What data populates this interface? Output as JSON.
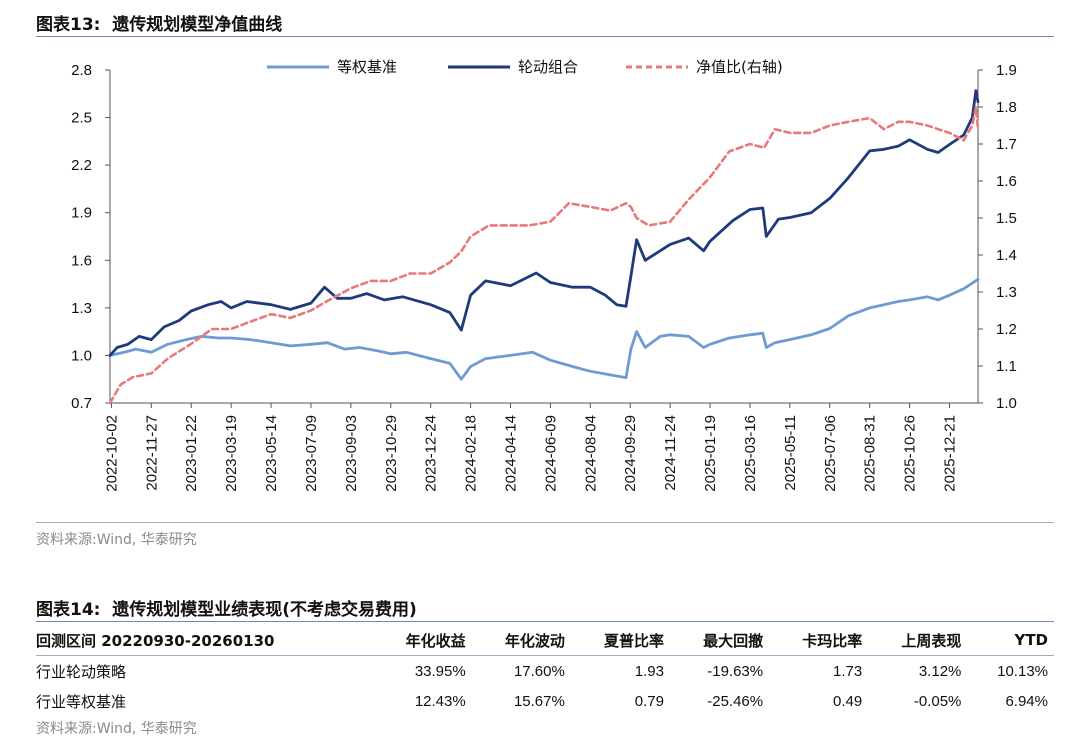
{
  "figure13": {
    "title": "图表13:  遗传规划模型净值曲线",
    "source": "资料来源:Wind, 华泰研究"
  },
  "chart_data": {
    "type": "line",
    "left_axis": {
      "ticks": [
        "0.7",
        "1.0",
        "1.3",
        "1.6",
        "1.9",
        "2.2",
        "2.5",
        "2.8"
      ],
      "range": [
        0.7,
        2.8
      ]
    },
    "right_axis": {
      "ticks": [
        "1.0",
        "1.1",
        "1.2",
        "1.3",
        "1.4",
        "1.5",
        "1.6",
        "1.7",
        "1.8",
        "1.9"
      ],
      "range": [
        1.0,
        1.9
      ]
    },
    "x_tick_labels": [
      "2022-10-02",
      "2022-11-27",
      "2023-01-22",
      "2023-03-19",
      "2023-05-14",
      "2023-07-09",
      "2023-09-03",
      "2023-10-29",
      "2023-12-24",
      "2024-02-18",
      "2024-04-14",
      "2024-06-09",
      "2024-08-04",
      "2024-09-29",
      "2024-11-24",
      "2025-01-19",
      "2025-03-16",
      "2025-05-11",
      "2025-07-06",
      "2025-08-31",
      "2025-10-26",
      "2025-12-21"
    ],
    "x_range": [
      "2022-09-30",
      "2026-01-30"
    ],
    "legend_position": "top",
    "series": [
      {
        "name": "等权基准",
        "axis": "left",
        "color": "#6f9bd3",
        "style": "solid",
        "points": [
          [
            "2022-09-30",
            1.0
          ],
          [
            "2022-10-20",
            1.02
          ],
          [
            "2022-11-05",
            1.04
          ],
          [
            "2022-11-27",
            1.02
          ],
          [
            "2022-12-20",
            1.07
          ],
          [
            "2023-01-15",
            1.1
          ],
          [
            "2023-02-05",
            1.12
          ],
          [
            "2023-03-01",
            1.11
          ],
          [
            "2023-03-19",
            1.11
          ],
          [
            "2023-04-15",
            1.1
          ],
          [
            "2023-05-14",
            1.08
          ],
          [
            "2023-06-10",
            1.06
          ],
          [
            "2023-07-09",
            1.07
          ],
          [
            "2023-08-01",
            1.08
          ],
          [
            "2023-08-25",
            1.04
          ],
          [
            "2023-09-15",
            1.05
          ],
          [
            "2023-10-10",
            1.03
          ],
          [
            "2023-10-29",
            1.01
          ],
          [
            "2023-11-20",
            1.02
          ],
          [
            "2023-12-24",
            0.98
          ],
          [
            "2024-01-20",
            0.95
          ],
          [
            "2024-02-05",
            0.85
          ],
          [
            "2024-02-18",
            0.93
          ],
          [
            "2024-03-10",
            0.98
          ],
          [
            "2024-04-14",
            1.0
          ],
          [
            "2024-05-15",
            1.02
          ],
          [
            "2024-06-09",
            0.97
          ],
          [
            "2024-07-10",
            0.93
          ],
          [
            "2024-08-04",
            0.9
          ],
          [
            "2024-09-10",
            0.87
          ],
          [
            "2024-09-23",
            0.86
          ],
          [
            "2024-09-30",
            1.04
          ],
          [
            "2024-10-08",
            1.15
          ],
          [
            "2024-10-20",
            1.05
          ],
          [
            "2024-11-10",
            1.12
          ],
          [
            "2024-11-24",
            1.13
          ],
          [
            "2024-12-20",
            1.12
          ],
          [
            "2025-01-10",
            1.05
          ],
          [
            "2025-01-19",
            1.07
          ],
          [
            "2025-02-15",
            1.11
          ],
          [
            "2025-03-16",
            1.13
          ],
          [
            "2025-04-03",
            1.14
          ],
          [
            "2025-04-08",
            1.05
          ],
          [
            "2025-04-20",
            1.08
          ],
          [
            "2025-05-11",
            1.1
          ],
          [
            "2025-06-10",
            1.13
          ],
          [
            "2025-07-06",
            1.17
          ],
          [
            "2025-08-01",
            1.25
          ],
          [
            "2025-08-31",
            1.3
          ],
          [
            "2025-09-20",
            1.32
          ],
          [
            "2025-10-10",
            1.34
          ],
          [
            "2025-10-26",
            1.35
          ],
          [
            "2025-11-20",
            1.37
          ],
          [
            "2025-12-05",
            1.35
          ],
          [
            "2025-12-21",
            1.38
          ],
          [
            "2026-01-10",
            1.42
          ],
          [
            "2026-01-30",
            1.48
          ]
        ]
      },
      {
        "name": "轮动组合",
        "axis": "left",
        "color": "#1f3a7a",
        "style": "solid",
        "points": [
          [
            "2022-09-30",
            1.0
          ],
          [
            "2022-10-10",
            1.05
          ],
          [
            "2022-10-25",
            1.07
          ],
          [
            "2022-11-10",
            1.12
          ],
          [
            "2022-11-27",
            1.1
          ],
          [
            "2022-12-15",
            1.18
          ],
          [
            "2023-01-05",
            1.22
          ],
          [
            "2023-01-22",
            1.28
          ],
          [
            "2023-02-15",
            1.32
          ],
          [
            "2023-03-05",
            1.34
          ],
          [
            "2023-03-19",
            1.3
          ],
          [
            "2023-04-10",
            1.34
          ],
          [
            "2023-05-14",
            1.32
          ],
          [
            "2023-06-10",
            1.29
          ],
          [
            "2023-07-09",
            1.33
          ],
          [
            "2023-07-28",
            1.43
          ],
          [
            "2023-08-15",
            1.36
          ],
          [
            "2023-09-03",
            1.36
          ],
          [
            "2023-09-25",
            1.39
          ],
          [
            "2023-10-20",
            1.35
          ],
          [
            "2023-11-15",
            1.37
          ],
          [
            "2023-12-24",
            1.32
          ],
          [
            "2024-01-20",
            1.27
          ],
          [
            "2024-02-05",
            1.16
          ],
          [
            "2024-02-18",
            1.38
          ],
          [
            "2024-03-10",
            1.47
          ],
          [
            "2024-04-14",
            1.44
          ],
          [
            "2024-05-20",
            1.52
          ],
          [
            "2024-06-09",
            1.46
          ],
          [
            "2024-07-10",
            1.43
          ],
          [
            "2024-08-04",
            1.43
          ],
          [
            "2024-08-25",
            1.38
          ],
          [
            "2024-09-10",
            1.32
          ],
          [
            "2024-09-23",
            1.31
          ],
          [
            "2024-09-30",
            1.5
          ],
          [
            "2024-10-08",
            1.73
          ],
          [
            "2024-10-20",
            1.6
          ],
          [
            "2024-11-10",
            1.66
          ],
          [
            "2024-11-24",
            1.7
          ],
          [
            "2024-12-20",
            1.74
          ],
          [
            "2025-01-10",
            1.66
          ],
          [
            "2025-01-19",
            1.72
          ],
          [
            "2025-02-20",
            1.85
          ],
          [
            "2025-03-16",
            1.92
          ],
          [
            "2025-04-03",
            1.93
          ],
          [
            "2025-04-08",
            1.75
          ],
          [
            "2025-04-25",
            1.86
          ],
          [
            "2025-05-11",
            1.87
          ],
          [
            "2025-06-10",
            1.9
          ],
          [
            "2025-07-06",
            1.99
          ],
          [
            "2025-08-01",
            2.12
          ],
          [
            "2025-08-31",
            2.29
          ],
          [
            "2025-09-20",
            2.3
          ],
          [
            "2025-10-10",
            2.32
          ],
          [
            "2025-10-26",
            2.36
          ],
          [
            "2025-11-20",
            2.3
          ],
          [
            "2025-12-05",
            2.28
          ],
          [
            "2025-12-21",
            2.33
          ],
          [
            "2026-01-10",
            2.39
          ],
          [
            "2026-01-22",
            2.5
          ],
          [
            "2026-01-27",
            2.67
          ],
          [
            "2026-01-30",
            2.6
          ]
        ]
      },
      {
        "name": "净值比(右轴)",
        "axis": "right",
        "color": "#e8797b",
        "style": "dashed",
        "points": [
          [
            "2022-09-30",
            1.0
          ],
          [
            "2022-10-15",
            1.05
          ],
          [
            "2022-11-01",
            1.07
          ],
          [
            "2022-11-27",
            1.08
          ],
          [
            "2022-12-20",
            1.12
          ],
          [
            "2023-01-22",
            1.16
          ],
          [
            "2023-02-20",
            1.2
          ],
          [
            "2023-03-19",
            1.2
          ],
          [
            "2023-04-15",
            1.22
          ],
          [
            "2023-05-14",
            1.24
          ],
          [
            "2023-06-10",
            1.23
          ],
          [
            "2023-07-09",
            1.25
          ],
          [
            "2023-08-05",
            1.28
          ],
          [
            "2023-09-03",
            1.31
          ],
          [
            "2023-10-01",
            1.33
          ],
          [
            "2023-10-29",
            1.33
          ],
          [
            "2023-11-25",
            1.35
          ],
          [
            "2023-12-24",
            1.35
          ],
          [
            "2024-01-20",
            1.38
          ],
          [
            "2024-02-05",
            1.41
          ],
          [
            "2024-02-18",
            1.45
          ],
          [
            "2024-03-15",
            1.48
          ],
          [
            "2024-04-14",
            1.48
          ],
          [
            "2024-05-10",
            1.48
          ],
          [
            "2024-06-09",
            1.49
          ],
          [
            "2024-07-05",
            1.54
          ],
          [
            "2024-08-04",
            1.53
          ],
          [
            "2024-09-01",
            1.52
          ],
          [
            "2024-09-23",
            1.54
          ],
          [
            "2024-09-30",
            1.53
          ],
          [
            "2024-10-08",
            1.5
          ],
          [
            "2024-10-25",
            1.48
          ],
          [
            "2024-11-24",
            1.49
          ],
          [
            "2024-12-20",
            1.55
          ],
          [
            "2025-01-19",
            1.61
          ],
          [
            "2025-02-15",
            1.68
          ],
          [
            "2025-03-16",
            1.7
          ],
          [
            "2025-04-05",
            1.69
          ],
          [
            "2025-04-20",
            1.74
          ],
          [
            "2025-05-11",
            1.73
          ],
          [
            "2025-06-10",
            1.73
          ],
          [
            "2025-07-06",
            1.75
          ],
          [
            "2025-08-01",
            1.76
          ],
          [
            "2025-08-31",
            1.77
          ],
          [
            "2025-09-20",
            1.74
          ],
          [
            "2025-10-10",
            1.76
          ],
          [
            "2025-10-26",
            1.76
          ],
          [
            "2025-11-20",
            1.75
          ],
          [
            "2025-12-05",
            1.74
          ],
          [
            "2025-12-21",
            1.73
          ],
          [
            "2026-01-10",
            1.71
          ],
          [
            "2026-01-22",
            1.75
          ],
          [
            "2026-01-27",
            1.8
          ],
          [
            "2026-01-30",
            1.74
          ]
        ]
      }
    ]
  },
  "figure14": {
    "title": "图表14:  遗传规划模型业绩表现(不考虑交易费用)",
    "source": "资料来源:Wind, 华泰研究",
    "headers": [
      "回测区间 20220930-20260130",
      "年化收益",
      "年化波动",
      "夏普比率",
      "最大回撤",
      "卡玛比率",
      "上周表现",
      "YTD"
    ],
    "rows": [
      [
        "行业轮动策略",
        "33.95%",
        "17.60%",
        "1.93",
        "-19.63%",
        "1.73",
        "3.12%",
        "10.13%"
      ],
      [
        "行业等权基准",
        "12.43%",
        "15.67%",
        "0.79",
        "-25.46%",
        "0.49",
        "-0.05%",
        "6.94%"
      ]
    ]
  }
}
